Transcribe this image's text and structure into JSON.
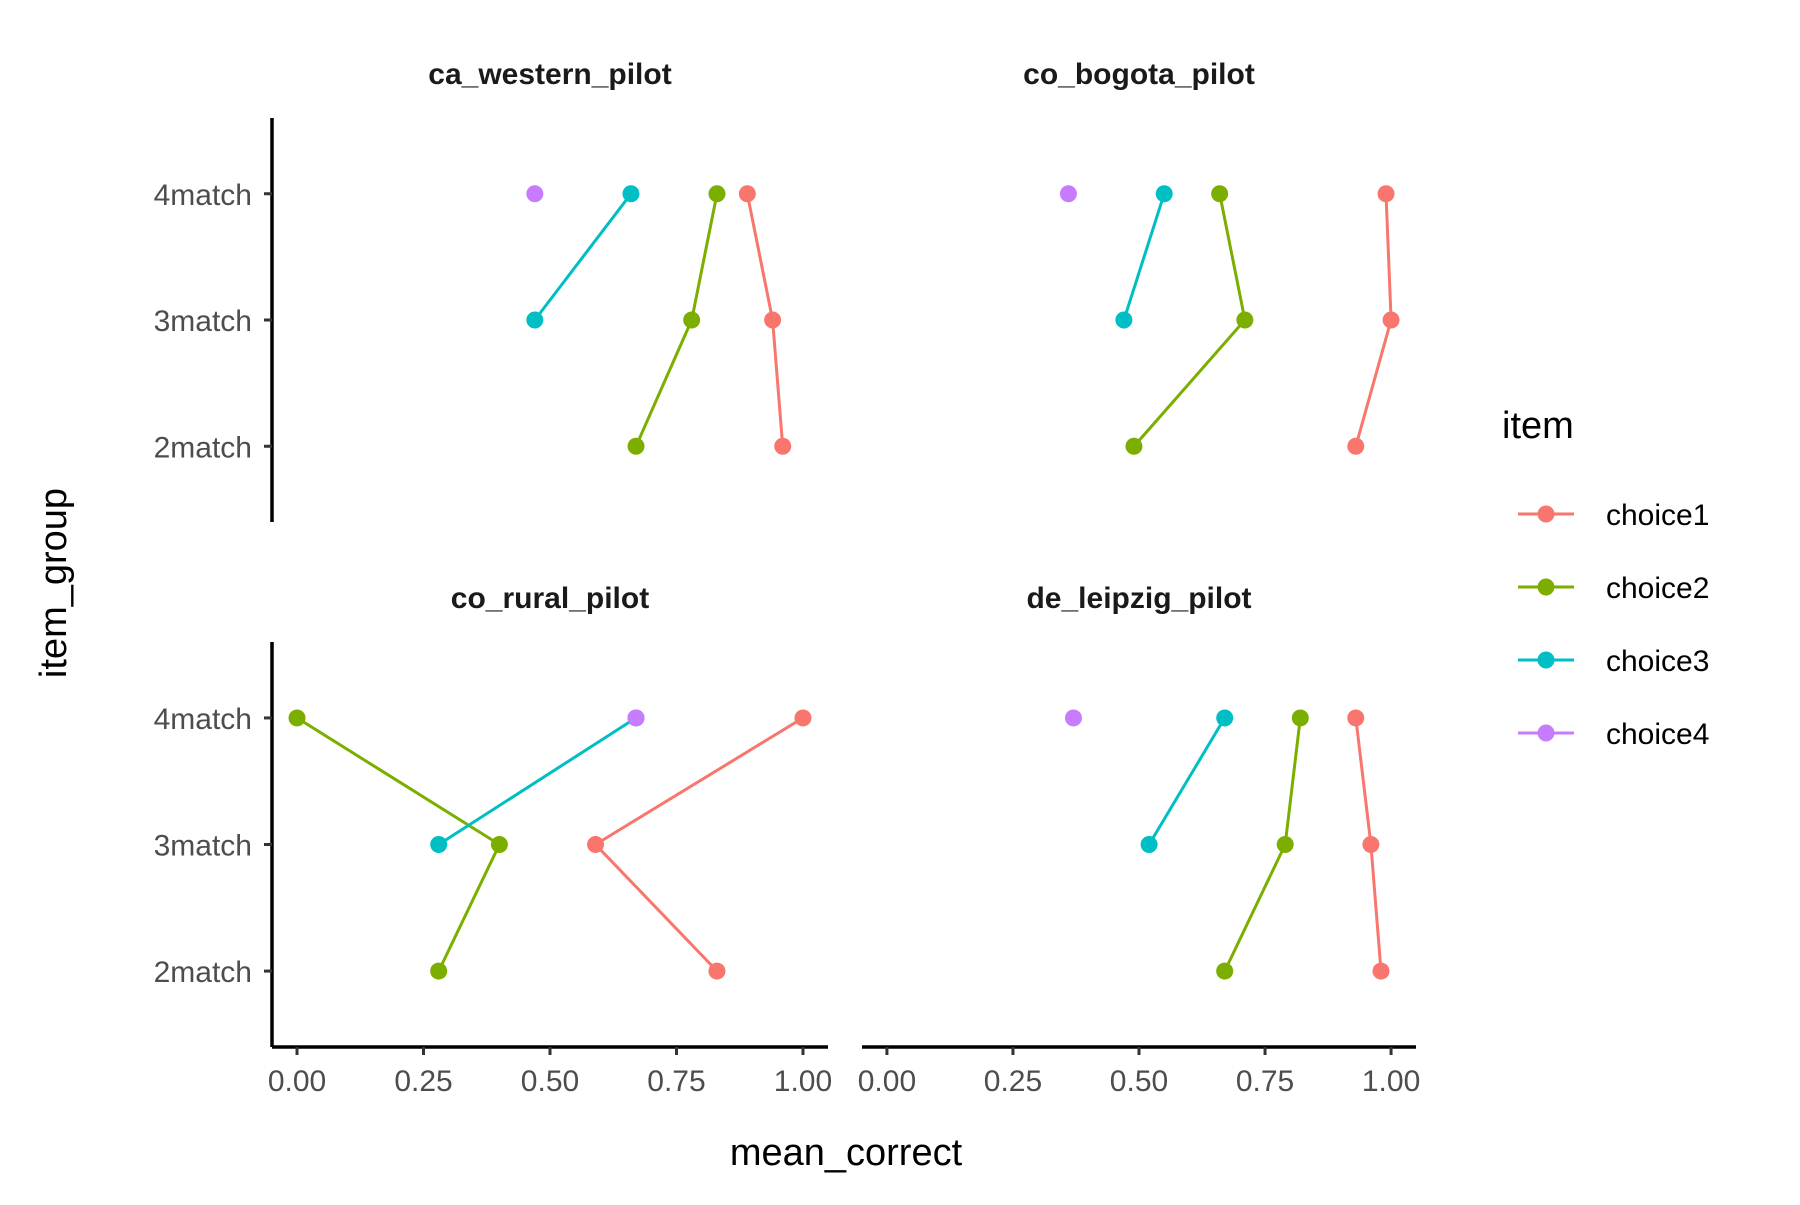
{
  "chart_data": {
    "type": "line",
    "layout": "faceted 2x2",
    "xlabel": "mean_correct",
    "ylabel": "item_group",
    "xlim": [
      0,
      1
    ],
    "x_ticks": [
      "0.00",
      "0.25",
      "0.50",
      "0.75",
      "1.00"
    ],
    "y_categories": [
      "2match",
      "3match",
      "4match"
    ],
    "grid": false,
    "legend": {
      "title": "item",
      "placement": "right",
      "entries": [
        "choice1",
        "choice2",
        "choice3",
        "choice4"
      ]
    },
    "colors": {
      "choice1": "#F8766D",
      "choice2": "#7CAE00",
      "choice3": "#00BFC4",
      "choice4": "#C77CFF"
    },
    "facets": [
      {
        "title": "ca_western_pilot",
        "series": [
          {
            "name": "choice1",
            "points": [
              {
                "x": 0.96,
                "y": "2match"
              },
              {
                "x": 0.94,
                "y": "3match"
              },
              {
                "x": 0.89,
                "y": "4match"
              }
            ]
          },
          {
            "name": "choice2",
            "points": [
              {
                "x": 0.67,
                "y": "2match"
              },
              {
                "x": 0.78,
                "y": "3match"
              },
              {
                "x": 0.83,
                "y": "4match"
              }
            ]
          },
          {
            "name": "choice3",
            "points": [
              {
                "x": 0.47,
                "y": "3match"
              },
              {
                "x": 0.66,
                "y": "4match"
              }
            ]
          },
          {
            "name": "choice4",
            "points": [
              {
                "x": 0.47,
                "y": "4match"
              }
            ]
          }
        ]
      },
      {
        "title": "co_bogota_pilot",
        "series": [
          {
            "name": "choice1",
            "points": [
              {
                "x": 0.93,
                "y": "2match"
              },
              {
                "x": 1.0,
                "y": "3match"
              },
              {
                "x": 0.99,
                "y": "4match"
              }
            ]
          },
          {
            "name": "choice2",
            "points": [
              {
                "x": 0.49,
                "y": "2match"
              },
              {
                "x": 0.71,
                "y": "3match"
              },
              {
                "x": 0.66,
                "y": "4match"
              }
            ]
          },
          {
            "name": "choice3",
            "points": [
              {
                "x": 0.47,
                "y": "3match"
              },
              {
                "x": 0.55,
                "y": "4match"
              }
            ]
          },
          {
            "name": "choice4",
            "points": [
              {
                "x": 0.36,
                "y": "4match"
              }
            ]
          }
        ]
      },
      {
        "title": "co_rural_pilot",
        "series": [
          {
            "name": "choice1",
            "points": [
              {
                "x": 0.83,
                "y": "2match"
              },
              {
                "x": 0.59,
                "y": "3match"
              },
              {
                "x": 1.0,
                "y": "4match"
              }
            ]
          },
          {
            "name": "choice2",
            "points": [
              {
                "x": 0.28,
                "y": "2match"
              },
              {
                "x": 0.4,
                "y": "3match"
              },
              {
                "x": 0.0,
                "y": "4match"
              }
            ]
          },
          {
            "name": "choice3",
            "points": [
              {
                "x": 0.28,
                "y": "3match"
              },
              {
                "x": 0.67,
                "y": "4match"
              }
            ]
          },
          {
            "name": "choice4",
            "points": [
              {
                "x": 0.67,
                "y": "4match"
              }
            ]
          }
        ]
      },
      {
        "title": "de_leipzig_pilot",
        "series": [
          {
            "name": "choice1",
            "points": [
              {
                "x": 0.98,
                "y": "2match"
              },
              {
                "x": 0.96,
                "y": "3match"
              },
              {
                "x": 0.93,
                "y": "4match"
              }
            ]
          },
          {
            "name": "choice2",
            "points": [
              {
                "x": 0.67,
                "y": "2match"
              },
              {
                "x": 0.79,
                "y": "3match"
              },
              {
                "x": 0.82,
                "y": "4match"
              }
            ]
          },
          {
            "name": "choice3",
            "points": [
              {
                "x": 0.52,
                "y": "3match"
              },
              {
                "x": 0.67,
                "y": "4match"
              }
            ]
          },
          {
            "name": "choice4",
            "points": [
              {
                "x": 0.37,
                "y": "4match"
              }
            ]
          }
        ]
      }
    ]
  }
}
